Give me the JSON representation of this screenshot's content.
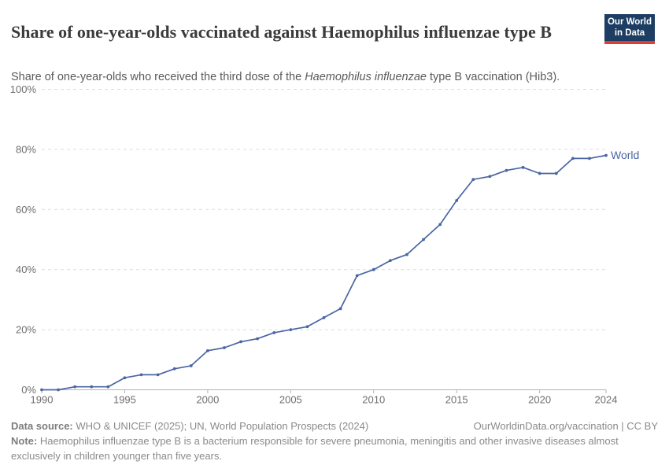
{
  "header": {
    "title": "Share of one-year-olds vaccinated against Haemophilus influenzae type B",
    "subtitle": {
      "before": "Share of one-year-olds who received the third dose of the ",
      "italic": "Haemophilus influenzae",
      "after": " type B vaccination (Hib3)."
    },
    "logo": {
      "line1": "Our World",
      "line2": "in Data"
    }
  },
  "chart_data": {
    "type": "line",
    "title": "Share of one-year-olds vaccinated against Haemophilus influenzae type B",
    "x": [
      1990,
      1991,
      1992,
      1993,
      1994,
      1995,
      1996,
      1997,
      1998,
      1999,
      2000,
      2001,
      2002,
      2003,
      2004,
      2005,
      2006,
      2007,
      2008,
      2009,
      2010,
      2011,
      2012,
      2013,
      2014,
      2015,
      2016,
      2017,
      2018,
      2019,
      2020,
      2021,
      2022,
      2023,
      2024
    ],
    "series": [
      {
        "name": "World",
        "color": "#4a65a3",
        "values": [
          0,
          0,
          1,
          1,
          1,
          4,
          5,
          5,
          7,
          8,
          13,
          14,
          16,
          17,
          19,
          20,
          21,
          24,
          27,
          38,
          40,
          43,
          45,
          50,
          55,
          63,
          70,
          71,
          73,
          74,
          72,
          72,
          77,
          77,
          78
        ]
      }
    ],
    "xlim": [
      1990,
      2024
    ],
    "ylim": [
      0,
      100
    ],
    "xticks": [
      1990,
      1995,
      2000,
      2005,
      2010,
      2015,
      2020,
      2024
    ],
    "yticks": [
      0,
      20,
      40,
      60,
      80,
      100
    ],
    "ytick_suffix": "%",
    "grid": "horizontal-dashed",
    "legend_position": "end-of-line"
  },
  "footer": {
    "datasource_label": "Data source:",
    "datasource_text": " WHO & UNICEF (2025); UN, World Population Prospects (2024)",
    "link_text": "OurWorldinData.org/vaccination | CC BY",
    "note_label": "Note:",
    "note_text": " Haemophilus influenzae type B is a bacterium responsible for severe pneumonia, meningitis and other invasive diseases almost exclusively in children younger than five years."
  },
  "colors": {
    "line": "#4a65a3",
    "logo_bg": "#1d3d63",
    "logo_accent": "#dc3f35",
    "grid": "#dcdcdc",
    "axis": "#b3b3b3",
    "tick_label": "#6e6e6e",
    "title": "#3b3b3b",
    "subtitle": "#5a5a5a",
    "footer": "#8a8a8a"
  }
}
